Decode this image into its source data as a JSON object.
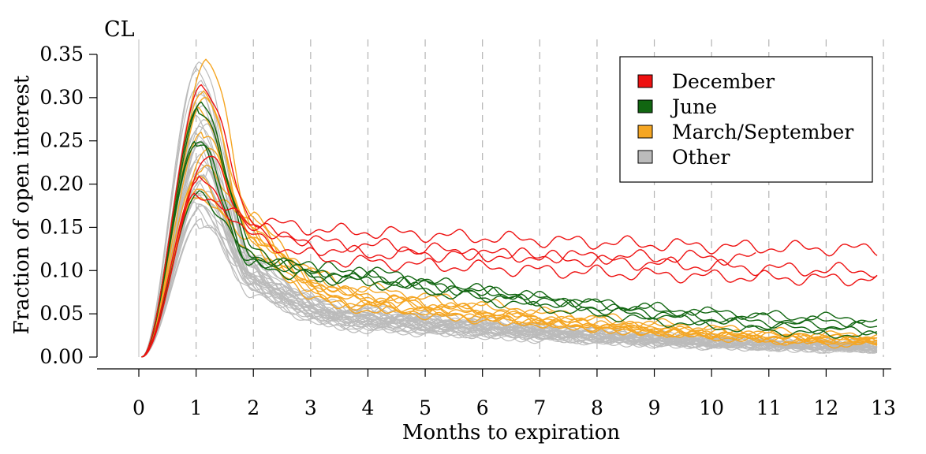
{
  "chart_data": {
    "type": "line",
    "title": "CL",
    "xlabel": "Months to expiration",
    "ylabel": "Fraction of open interest",
    "xlim": [
      0,
      13
    ],
    "ylim": [
      0,
      0.35
    ],
    "xticks": [
      "0",
      "1",
      "2",
      "3",
      "4",
      "5",
      "6",
      "7",
      "8",
      "9",
      "10",
      "11",
      "12",
      "13"
    ],
    "yticks": [
      "0.00",
      "0.05",
      "0.10",
      "0.15",
      "0.20",
      "0.25",
      "0.30",
      "0.35"
    ],
    "grid": "vertical-dashed",
    "legend_position": "top-right",
    "legend": [
      {
        "key": "december",
        "label": "December",
        "color": "#ee1111"
      },
      {
        "key": "june",
        "label": "June",
        "color": "#116611"
      },
      {
        "key": "marsep",
        "label": "March/September",
        "color": "#f5a623"
      },
      {
        "key": "other",
        "label": "Other",
        "color": "#bbbbbb"
      }
    ],
    "series": [
      {
        "group": "other",
        "peak": 0.34,
        "peak_x": 1.05,
        "t2": 0.12,
        "t4": 0.05,
        "end": 0.01,
        "end_x": 12.9
      },
      {
        "group": "other",
        "peak": 0.33,
        "peak_x": 1.0,
        "t2": 0.11,
        "t4": 0.055,
        "end": 0.012,
        "end_x": 12.9
      },
      {
        "group": "other",
        "peak": 0.32,
        "peak_x": 1.1,
        "t2": 0.105,
        "t4": 0.048,
        "end": 0.014,
        "end_x": 12.9
      },
      {
        "group": "other",
        "peak": 0.31,
        "peak_x": 1.0,
        "t2": 0.115,
        "t4": 0.052,
        "end": 0.01,
        "end_x": 12.9
      },
      {
        "group": "other",
        "peak": 0.3,
        "peak_x": 1.05,
        "t2": 0.1,
        "t4": 0.045,
        "end": 0.012,
        "end_x": 12.9
      },
      {
        "group": "other",
        "peak": 0.29,
        "peak_x": 1.1,
        "t2": 0.108,
        "t4": 0.05,
        "end": 0.015,
        "end_x": 12.9
      },
      {
        "group": "other",
        "peak": 0.28,
        "peak_x": 1.0,
        "t2": 0.095,
        "t4": 0.042,
        "end": 0.008,
        "end_x": 12.9
      },
      {
        "group": "other",
        "peak": 0.275,
        "peak_x": 1.15,
        "t2": 0.112,
        "t4": 0.055,
        "end": 0.014,
        "end_x": 12.9
      },
      {
        "group": "other",
        "peak": 0.265,
        "peak_x": 1.05,
        "t2": 0.09,
        "t4": 0.04,
        "end": 0.01,
        "end_x": 12.9
      },
      {
        "group": "other",
        "peak": 0.26,
        "peak_x": 1.0,
        "t2": 0.1,
        "t4": 0.048,
        "end": 0.012,
        "end_x": 12.9
      },
      {
        "group": "other",
        "peak": 0.25,
        "peak_x": 1.1,
        "t2": 0.098,
        "t4": 0.046,
        "end": 0.016,
        "end_x": 12.9
      },
      {
        "group": "other",
        "peak": 0.245,
        "peak_x": 1.05,
        "t2": 0.088,
        "t4": 0.038,
        "end": 0.009,
        "end_x": 12.9
      },
      {
        "group": "other",
        "peak": 0.24,
        "peak_x": 1.0,
        "t2": 0.105,
        "t4": 0.052,
        "end": 0.013,
        "end_x": 12.9
      },
      {
        "group": "other",
        "peak": 0.235,
        "peak_x": 1.1,
        "t2": 0.092,
        "t4": 0.044,
        "end": 0.011,
        "end_x": 12.9
      },
      {
        "group": "other",
        "peak": 0.23,
        "peak_x": 1.05,
        "t2": 0.085,
        "t4": 0.036,
        "end": 0.008,
        "end_x": 12.9
      },
      {
        "group": "other",
        "peak": 0.225,
        "peak_x": 1.0,
        "t2": 0.096,
        "t4": 0.047,
        "end": 0.012,
        "end_x": 12.9
      },
      {
        "group": "other",
        "peak": 0.22,
        "peak_x": 1.15,
        "t2": 0.102,
        "t4": 0.05,
        "end": 0.015,
        "end_x": 12.9
      },
      {
        "group": "other",
        "peak": 0.215,
        "peak_x": 1.05,
        "t2": 0.086,
        "t4": 0.04,
        "end": 0.01,
        "end_x": 12.9
      },
      {
        "group": "other",
        "peak": 0.21,
        "peak_x": 1.0,
        "t2": 0.094,
        "t4": 0.043,
        "end": 0.011,
        "end_x": 12.9
      },
      {
        "group": "other",
        "peak": 0.205,
        "peak_x": 1.1,
        "t2": 0.09,
        "t4": 0.045,
        "end": 0.013,
        "end_x": 12.9
      },
      {
        "group": "other",
        "peak": 0.2,
        "peak_x": 1.05,
        "t2": 0.082,
        "t4": 0.035,
        "end": 0.009,
        "end_x": 12.9
      },
      {
        "group": "other",
        "peak": 0.195,
        "peak_x": 1.0,
        "t2": 0.098,
        "t4": 0.048,
        "end": 0.014,
        "end_x": 12.9
      },
      {
        "group": "other",
        "peak": 0.19,
        "peak_x": 1.1,
        "t2": 0.088,
        "t4": 0.041,
        "end": 0.012,
        "end_x": 12.9
      },
      {
        "group": "other",
        "peak": 0.185,
        "peak_x": 1.05,
        "t2": 0.08,
        "t4": 0.034,
        "end": 0.008,
        "end_x": 12.9
      },
      {
        "group": "other",
        "peak": 0.18,
        "peak_x": 1.0,
        "t2": 0.092,
        "t4": 0.044,
        "end": 0.012,
        "end_x": 12.9
      },
      {
        "group": "other",
        "peak": 0.175,
        "peak_x": 1.1,
        "t2": 0.085,
        "t4": 0.039,
        "end": 0.01,
        "end_x": 12.9
      },
      {
        "group": "other",
        "peak": 0.17,
        "peak_x": 1.05,
        "t2": 0.078,
        "t4": 0.033,
        "end": 0.009,
        "end_x": 12.9
      },
      {
        "group": "other",
        "peak": 0.165,
        "peak_x": 1.0,
        "t2": 0.09,
        "t4": 0.042,
        "end": 0.011,
        "end_x": 12.9
      },
      {
        "group": "other",
        "peak": 0.16,
        "peak_x": 1.1,
        "t2": 0.083,
        "t4": 0.037,
        "end": 0.01,
        "end_x": 12.9
      },
      {
        "group": "other",
        "peak": 0.155,
        "peak_x": 1.05,
        "t2": 0.075,
        "t4": 0.032,
        "end": 0.008,
        "end_x": 12.9
      },
      {
        "group": "other",
        "peak": 0.21,
        "peak_x": 1.2,
        "t2": 0.11,
        "t4": 0.054,
        "end": 0.016,
        "end_x": 12.9
      },
      {
        "group": "other",
        "peak": 0.27,
        "peak_x": 1.2,
        "t2": 0.1,
        "t4": 0.046,
        "end": 0.013,
        "end_x": 12.9
      },
      {
        "group": "marsep",
        "peak": 0.345,
        "peak_x": 1.2,
        "t2": 0.15,
        "t4": 0.07,
        "end": 0.02,
        "end_x": 12.9
      },
      {
        "group": "marsep",
        "peak": 0.305,
        "peak_x": 1.1,
        "t2": 0.14,
        "t4": 0.06,
        "end": 0.018,
        "end_x": 12.9
      },
      {
        "group": "marsep",
        "peak": 0.3,
        "peak_x": 1.15,
        "t2": 0.16,
        "t4": 0.075,
        "end": 0.022,
        "end_x": 12.9
      },
      {
        "group": "marsep",
        "peak": 0.29,
        "peak_x": 1.05,
        "t2": 0.135,
        "t4": 0.065,
        "end": 0.015,
        "end_x": 12.9
      },
      {
        "group": "marsep",
        "peak": 0.26,
        "peak_x": 1.1,
        "t2": 0.145,
        "t4": 0.068,
        "end": 0.02,
        "end_x": 12.9
      },
      {
        "group": "marsep",
        "peak": 0.215,
        "peak_x": 1.1,
        "t2": 0.165,
        "t4": 0.08,
        "end": 0.025,
        "end_x": 12.9
      },
      {
        "group": "marsep",
        "peak": 0.205,
        "peak_x": 1.0,
        "t2": 0.13,
        "t4": 0.058,
        "end": 0.018,
        "end_x": 12.9
      },
      {
        "group": "marsep",
        "peak": 0.195,
        "peak_x": 1.05,
        "t2": 0.155,
        "t4": 0.072,
        "end": 0.014,
        "end_x": 12.9
      },
      {
        "group": "marsep",
        "peak": 0.185,
        "peak_x": 1.0,
        "t2": 0.125,
        "t4": 0.055,
        "end": 0.02,
        "end_x": 12.9
      },
      {
        "group": "marsep",
        "peak": 0.24,
        "peak_x": 1.2,
        "t2": 0.15,
        "t4": 0.062,
        "end": 0.021,
        "end_x": 12.9
      },
      {
        "group": "june",
        "peak": 0.295,
        "peak_x": 1.1,
        "t2": 0.125,
        "t4": 0.095,
        "end": 0.04,
        "end_x": 12.9
      },
      {
        "group": "june",
        "peak": 0.29,
        "peak_x": 1.05,
        "t2": 0.12,
        "t4": 0.09,
        "end": 0.035,
        "end_x": 12.9
      },
      {
        "group": "june",
        "peak": 0.25,
        "peak_x": 1.0,
        "t2": 0.11,
        "t4": 0.1,
        "end": 0.03,
        "end_x": 12.9
      },
      {
        "group": "june",
        "peak": 0.245,
        "peak_x": 1.0,
        "t2": 0.105,
        "t4": 0.092,
        "end": 0.045,
        "end_x": 12.7
      },
      {
        "group": "june",
        "peak": 0.19,
        "peak_x": 1.05,
        "t2": 0.115,
        "t4": 0.088,
        "end": 0.025,
        "end_x": 12.9
      },
      {
        "group": "december",
        "peak": 0.315,
        "peak_x": 1.1,
        "t2": 0.16,
        "t4": 0.145,
        "end": 0.125,
        "end_x": 12.9
      },
      {
        "group": "december",
        "peak": 0.23,
        "peak_x": 1.2,
        "t2": 0.15,
        "t4": 0.13,
        "end": 0.1,
        "end_x": 12.9
      },
      {
        "group": "december",
        "peak": 0.205,
        "peak_x": 1.05,
        "t2": 0.14,
        "t4": 0.11,
        "end": 0.09,
        "end_x": 12.9
      },
      {
        "group": "december",
        "peak": 0.19,
        "peak_x": 1.0,
        "t2": 0.155,
        "t4": 0.12,
        "end": 0.115,
        "end_x": 10.8
      }
    ]
  }
}
